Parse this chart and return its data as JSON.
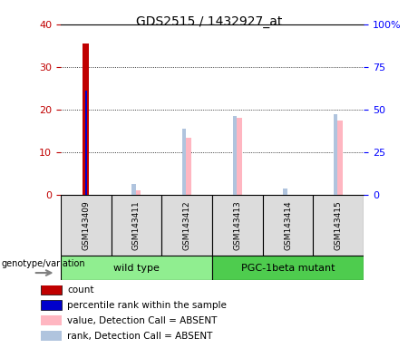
{
  "title": "GDS2515 / 1432927_at",
  "samples": [
    "GSM143409",
    "GSM143411",
    "GSM143412",
    "GSM143413",
    "GSM143414",
    "GSM143415"
  ],
  "groups": [
    {
      "label": "wild type",
      "color": "#90EE90",
      "n_samples": 3
    },
    {
      "label": "PGC-1beta mutant",
      "color": "#4ECC4E",
      "n_samples": 3
    }
  ],
  "count_values": [
    35.5,
    0,
    0,
    0,
    0,
    0
  ],
  "percentile_values": [
    24.5,
    0,
    0,
    0,
    0,
    0
  ],
  "value_absent": [
    0,
    1.0,
    13.5,
    18.0,
    0,
    17.5
  ],
  "rank_absent": [
    0,
    2.5,
    15.5,
    18.5,
    1.5,
    19.0
  ],
  "ylim_left": [
    0,
    40
  ],
  "ylim_right": [
    0,
    100
  ],
  "yticks_left": [
    0,
    10,
    20,
    30,
    40
  ],
  "yticks_right": [
    0,
    25,
    50,
    75,
    100
  ],
  "yticklabels_right": [
    "0",
    "25",
    "50",
    "75",
    "100%"
  ],
  "color_count": "#C00000",
  "color_percentile": "#0000CC",
  "color_value_absent": "#FFB6C1",
  "color_rank_absent": "#B0C4DE",
  "legend_entries": [
    {
      "color": "#C00000",
      "label": "count"
    },
    {
      "color": "#0000CC",
      "label": "percentile rank within the sample"
    },
    {
      "color": "#FFB6C1",
      "label": "value, Detection Call = ABSENT"
    },
    {
      "color": "#B0C4DE",
      "label": "rank, Detection Call = ABSENT"
    }
  ],
  "genotype_label": "genotype/variation",
  "sample_box_color": "#DCDCDC",
  "grid_color": "#000000"
}
